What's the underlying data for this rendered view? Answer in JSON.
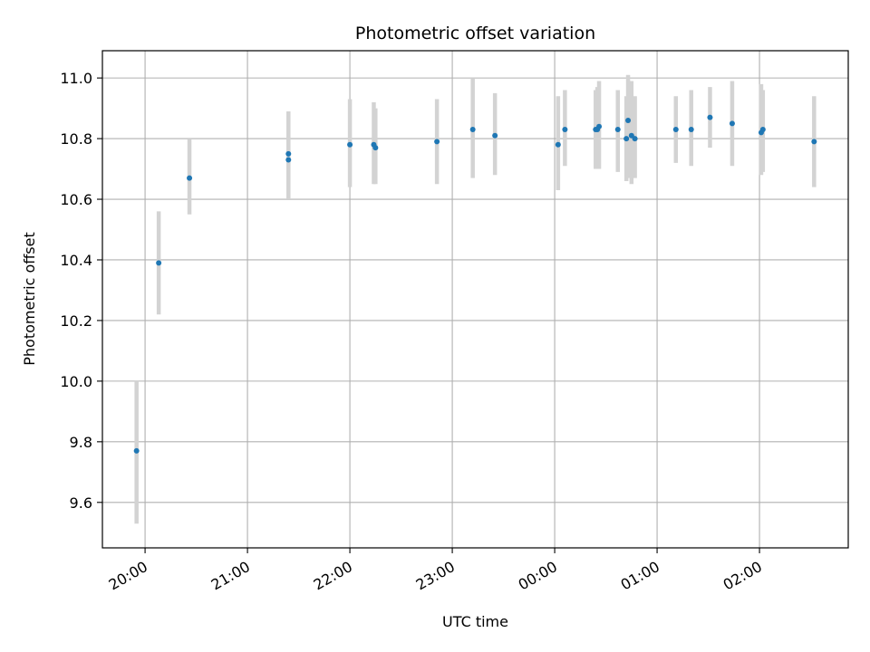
{
  "chart_data": {
    "type": "scatter",
    "title": "Photometric offset variation",
    "xlabel": "UTC time",
    "ylabel": "Photometric offset",
    "x_axis_type": "time",
    "x_start": "19:35",
    "x_end": "02:52",
    "xlim_minutes_from_midnight": [
      -265,
      172
    ],
    "ylim": [
      9.45,
      11.09
    ],
    "grid": true,
    "x_ticks": [
      {
        "label": "20:00",
        "minutes": -240
      },
      {
        "label": "21:00",
        "minutes": -180
      },
      {
        "label": "22:00",
        "minutes": -120
      },
      {
        "label": "23:00",
        "minutes": -60
      },
      {
        "label": "00:00",
        "minutes": 0
      },
      {
        "label": "01:00",
        "minutes": 60
      },
      {
        "label": "02:00",
        "minutes": 120
      }
    ],
    "y_ticks": [
      9.6,
      9.8,
      10.0,
      10.2,
      10.4,
      10.6,
      10.8,
      11.0
    ],
    "y_tick_labels": [
      "9.6",
      "9.8",
      "10.0",
      "10.2",
      "10.4",
      "10.6",
      "10.8",
      "11.0"
    ],
    "colors": {
      "points": "#1f77b4",
      "errorbars": "#d3d3d3",
      "grid": "#b0b0b0",
      "axes": "#000000"
    },
    "points": [
      {
        "time": "19:55",
        "y": 9.77,
        "lo": 9.53,
        "hi": 10.0
      },
      {
        "time": "20:08",
        "y": 10.39,
        "lo": 10.22,
        "hi": 10.56
      },
      {
        "time": "20:26",
        "y": 10.67,
        "lo": 10.55,
        "hi": 10.8
      },
      {
        "time": "21:24",
        "y": 10.75,
        "lo": 10.6,
        "hi": 10.89
      },
      {
        "time": "21:24",
        "y": 10.73,
        "lo": 10.6,
        "hi": 10.87
      },
      {
        "time": "22:00",
        "y": 10.78,
        "lo": 10.64,
        "hi": 10.93
      },
      {
        "time": "22:14",
        "y": 10.78,
        "lo": 10.65,
        "hi": 10.92
      },
      {
        "time": "22:15",
        "y": 10.77,
        "lo": 10.65,
        "hi": 10.9
      },
      {
        "time": "22:51",
        "y": 10.79,
        "lo": 10.65,
        "hi": 10.93
      },
      {
        "time": "23:12",
        "y": 10.83,
        "lo": 10.67,
        "hi": 11.0
      },
      {
        "time": "23:25",
        "y": 10.81,
        "lo": 10.68,
        "hi": 10.95
      },
      {
        "time": "00:02",
        "y": 10.78,
        "lo": 10.63,
        "hi": 10.94
      },
      {
        "time": "00:06",
        "y": 10.83,
        "lo": 10.71,
        "hi": 10.96
      },
      {
        "time": "00:24",
        "y": 10.83,
        "lo": 10.7,
        "hi": 10.96
      },
      {
        "time": "00:25",
        "y": 10.83,
        "lo": 10.7,
        "hi": 10.97
      },
      {
        "time": "00:26",
        "y": 10.84,
        "lo": 10.7,
        "hi": 10.99
      },
      {
        "time": "00:37",
        "y": 10.83,
        "lo": 10.69,
        "hi": 10.96
      },
      {
        "time": "00:42",
        "y": 10.8,
        "lo": 10.66,
        "hi": 10.94
      },
      {
        "time": "00:43",
        "y": 10.86,
        "lo": 10.67,
        "hi": 11.01
      },
      {
        "time": "00:45",
        "y": 10.81,
        "lo": 10.65,
        "hi": 10.99
      },
      {
        "time": "00:47",
        "y": 10.8,
        "lo": 10.67,
        "hi": 10.94
      },
      {
        "time": "01:11",
        "y": 10.83,
        "lo": 10.72,
        "hi": 10.94
      },
      {
        "time": "01:20",
        "y": 10.83,
        "lo": 10.71,
        "hi": 10.96
      },
      {
        "time": "01:31",
        "y": 10.87,
        "lo": 10.77,
        "hi": 10.97
      },
      {
        "time": "01:44",
        "y": 10.85,
        "lo": 10.71,
        "hi": 10.99
      },
      {
        "time": "02:01",
        "y": 10.82,
        "lo": 10.68,
        "hi": 10.98
      },
      {
        "time": "02:02",
        "y": 10.83,
        "lo": 10.69,
        "hi": 10.96
      },
      {
        "time": "02:32",
        "y": 10.79,
        "lo": 10.64,
        "hi": 10.94
      }
    ]
  }
}
